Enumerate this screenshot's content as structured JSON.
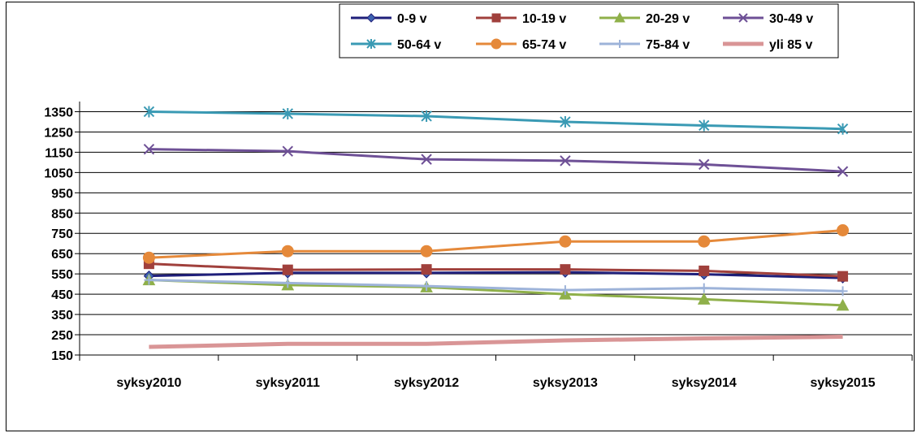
{
  "chart_data": {
    "type": "line",
    "title": "",
    "xlabel": "",
    "ylabel": "",
    "categories": [
      "syksy2010",
      "syksy2011",
      "syksy2012",
      "syksy2013",
      "syksy2014",
      "syksy2015"
    ],
    "yticks": [
      "150",
      "250",
      "350",
      "450",
      "550",
      "650",
      "750",
      "850",
      "950",
      "1050",
      "1150",
      "1250",
      "1350"
    ],
    "ylim": [
      150,
      1400
    ],
    "grid": true,
    "legend_position": "top",
    "series": [
      {
        "name": "0-9 v",
        "color": "#1f1f7a",
        "marker": "diamond",
        "values": [
          540,
          555,
          555,
          558,
          548,
          530
        ]
      },
      {
        "name": "10-19 v",
        "color": "#a0403c",
        "marker": "square",
        "values": [
          600,
          570,
          572,
          572,
          565,
          538
        ]
      },
      {
        "name": "20-29 v",
        "color": "#8fb04a",
        "marker": "triangle",
        "values": [
          520,
          495,
          485,
          450,
          425,
          395
        ]
      },
      {
        "name": "30-49 v",
        "color": "#6e5096",
        "marker": "x",
        "values": [
          1165,
          1155,
          1115,
          1108,
          1090,
          1055
        ]
      },
      {
        "name": "50-64 v",
        "color": "#3a9ab4",
        "marker": "star",
        "values": [
          1350,
          1340,
          1328,
          1300,
          1282,
          1265
        ]
      },
      {
        "name": "65-74 v",
        "color": "#e5893a",
        "marker": "circle",
        "values": [
          630,
          662,
          662,
          710,
          710,
          765
        ]
      },
      {
        "name": "75-84 v",
        "color": "#9db3d9",
        "marker": "plus",
        "values": [
          520,
          505,
          490,
          470,
          480,
          465
        ]
      },
      {
        "name": "yli 85 v",
        "color": "#d99596",
        "marker": "none",
        "values": [
          190,
          205,
          205,
          222,
          232,
          240
        ]
      }
    ]
  }
}
